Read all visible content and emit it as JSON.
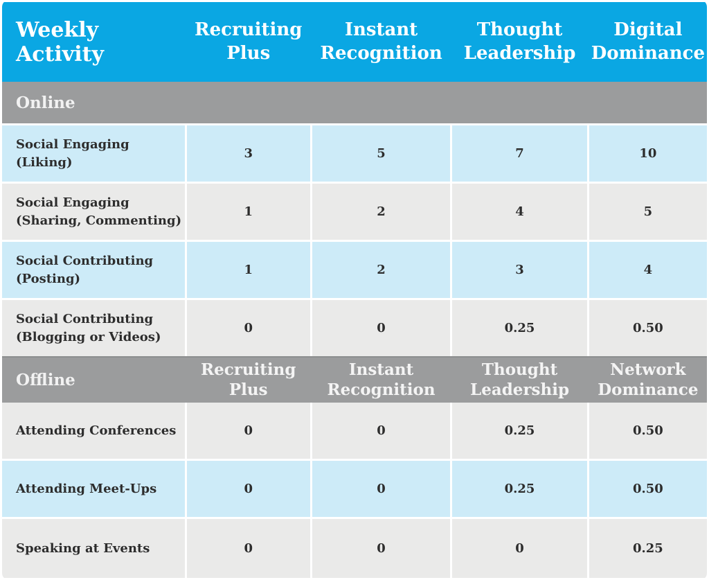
{
  "colors": {
    "header_blue": "#0AA7E3",
    "band_gray": "#9B9C9D",
    "row_light_blue": "#CDEBF8",
    "row_light_gray": "#EAEAE9",
    "header_text": "#FFFFFF",
    "body_text": "#2D2D2D"
  },
  "chart_data": {
    "type": "table",
    "title": "Weekly Activity",
    "column_headers": [
      "Recruiting\nPlus",
      "Instant\nRecognition",
      "Thought\nLeadership",
      "Digital\nDominance"
    ],
    "sections": [
      {
        "label": "Online",
        "rows": [
          {
            "label": "Social Engaging\n(Liking)",
            "values": [
              "3",
              "5",
              "7",
              "10"
            ]
          },
          {
            "label": "Social Engaging\n(Sharing, Commenting)",
            "values": [
              "1",
              "2",
              "4",
              "5"
            ]
          },
          {
            "label": "Social Contributing\n(Posting)",
            "values": [
              "1",
              "2",
              "3",
              "4"
            ]
          },
          {
            "label": "Social Contributing\n(Blogging or Videos)",
            "values": [
              "0",
              "0",
              "0.25",
              "0.50"
            ]
          }
        ]
      },
      {
        "label": "Offline",
        "column_headers": [
          "Recruiting\nPlus",
          "Instant\nRecognition",
          "Thought\nLeadership",
          "Network\nDominance"
        ],
        "rows": [
          {
            "label": "Attending Conferences",
            "values": [
              "0",
              "0",
              "0.25",
              "0.50"
            ]
          },
          {
            "label": "Attending Meet-Ups",
            "values": [
              "0",
              "0",
              "0.25",
              "0.50"
            ]
          },
          {
            "label": "Speaking at Events",
            "values": [
              "0",
              "0",
              "0",
              "0.25"
            ]
          }
        ]
      }
    ]
  }
}
